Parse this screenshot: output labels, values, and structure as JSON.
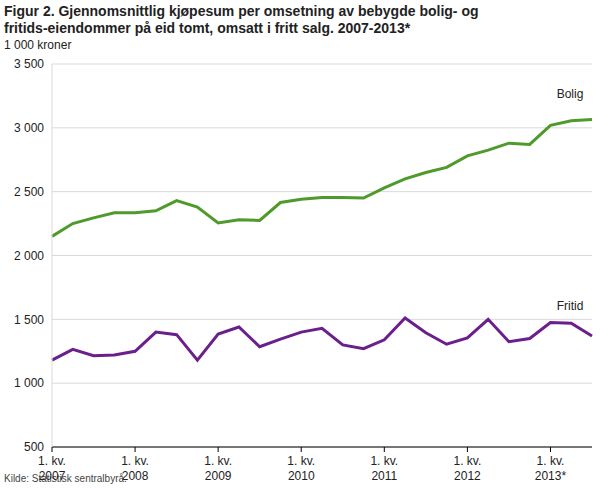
{
  "chart_data": {
    "type": "line",
    "title": "Figur 2. Gjennomsnittlig kjøpesum per omsetning av bebygde bolig- og fritids-eiendommer på eid tomt, omsatt i fritt salg. 2007-2013*",
    "y_label": "1 000 kroner",
    "source": "Kilde: Statistisk sentralbyrå.",
    "categories": [
      "1. kv. 2007",
      null,
      null,
      null,
      "1. kv. 2008",
      null,
      null,
      null,
      "1. kv. 2009",
      null,
      null,
      null,
      "1. kv. 2010",
      null,
      null,
      null,
      "1. kv. 2011",
      null,
      null,
      null,
      "1. kv. 2012",
      null,
      null,
      null,
      "1. kv. 2013*",
      null,
      null
    ],
    "series": [
      {
        "name": "Bolig",
        "color": "#4e9a2a",
        "values": [
          2150,
          2250,
          2295,
          2335,
          2335,
          2350,
          2430,
          2380,
          2255,
          2280,
          2275,
          2415,
          2440,
          2455,
          2455,
          2450,
          2530,
          2600,
          2650,
          2690,
          2780,
          2825,
          2880,
          2870,
          3020,
          3055,
          3065
        ]
      },
      {
        "name": "Fritid",
        "color": "#6b1f8c",
        "values": [
          1180,
          1265,
          1215,
          1220,
          1250,
          1400,
          1380,
          1180,
          1385,
          1440,
          1285,
          1345,
          1400,
          1430,
          1300,
          1270,
          1340,
          1510,
          1395,
          1305,
          1355,
          1500,
          1325,
          1350,
          1475,
          1470,
          1370
        ]
      }
    ],
    "ylim": [
      500,
      3500
    ],
    "yticks": [
      {
        "value": 500,
        "label": "500"
      },
      {
        "value": 1000,
        "label": "1 000"
      },
      {
        "value": 1500,
        "label": "1 500"
      },
      {
        "value": 2000,
        "label": "2 000"
      },
      {
        "value": 2500,
        "label": "2 500"
      },
      {
        "value": 3000,
        "label": "3 000"
      },
      {
        "value": 3500,
        "label": "3 500"
      }
    ],
    "grid": true
  }
}
